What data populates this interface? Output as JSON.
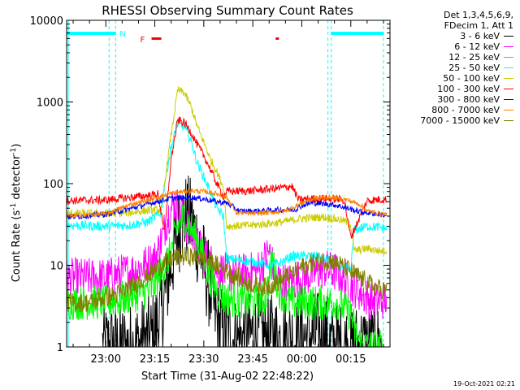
{
  "chart_data": {
    "type": "line",
    "title": "RHESSI Observing Summary Count Rates",
    "xlabel": "Start Time (31-Aug-02 22:48:22)",
    "ylabel_main": "Count Rate (s",
    "ylabel_sup1": "-1",
    "ylabel_mid": " detector",
    "ylabel_sup2": "-1",
    "ylabel_end": ")",
    "y_scale": "log",
    "ylim": [
      1,
      10000
    ],
    "xlim_minutes": [
      -12,
      87
    ],
    "x_ticks": [
      {
        "minute": 0,
        "label": "23:00"
      },
      {
        "minute": 15,
        "label": "23:15"
      },
      {
        "minute": 30,
        "label": "23:30"
      },
      {
        "minute": 45,
        "label": "23:45"
      },
      {
        "minute": 60,
        "label": "00:00"
      },
      {
        "minute": 75,
        "label": "00:15"
      }
    ],
    "y_ticks": [
      {
        "value": 1,
        "label": "1"
      },
      {
        "value": 10,
        "label": "10"
      },
      {
        "value": 100,
        "label": "100"
      },
      {
        "value": 1000,
        "label": "1000"
      },
      {
        "value": 10000,
        "label": "10000"
      }
    ],
    "legend_header": [
      "Det 1,3,4,5,6,9,",
      "FDecim 1, Att 1"
    ],
    "flag_labels": {
      "night": "N",
      "flare": "F"
    },
    "night_color": "#00ffff",
    "flare_color": "#ff0000",
    "night_bars": [
      [
        -12,
        3
      ],
      [
        69,
        85
      ]
    ],
    "flare_bars": [
      [
        14,
        17
      ],
      [
        52,
        53
      ]
    ],
    "data_gaps": [
      [
        -12,
        -11.5
      ],
      [
        1,
        3
      ],
      [
        68,
        69
      ],
      [
        85,
        87
      ]
    ],
    "series": [
      {
        "name": "3 - 6 keV",
        "color": "#000000",
        "points": [
          [
            -1,
            1
          ],
          [
            3,
            1
          ],
          [
            8,
            1
          ],
          [
            14,
            1.3
          ],
          [
            17,
            2.5
          ],
          [
            20,
            10
          ],
          [
            22,
            25
          ],
          [
            24,
            40
          ],
          [
            26,
            35
          ],
          [
            28,
            20
          ],
          [
            30,
            10
          ],
          [
            32,
            5
          ],
          [
            34,
            2
          ],
          [
            36,
            1.5
          ],
          [
            40,
            1.2
          ],
          [
            45,
            1.4
          ],
          [
            50,
            1.3
          ],
          [
            55,
            1.2
          ],
          [
            60,
            1.3
          ],
          [
            65,
            1.4
          ],
          [
            68,
            1.3
          ],
          [
            69,
            1
          ],
          [
            80,
            1
          ],
          [
            85,
            1
          ]
        ]
      },
      {
        "name": "6 - 12 keV",
        "color": "#ff00ff",
        "points": [
          [
            -12,
            7
          ],
          [
            0,
            7
          ],
          [
            8,
            8.5
          ],
          [
            12,
            10
          ],
          [
            15,
            12
          ],
          [
            17,
            20
          ],
          [
            19,
            40
          ],
          [
            21,
            60
          ],
          [
            23,
            45
          ],
          [
            25,
            30
          ],
          [
            28,
            18
          ],
          [
            31,
            12
          ],
          [
            34,
            9
          ],
          [
            37,
            8
          ],
          [
            43,
            8
          ],
          [
            47,
            9
          ],
          [
            50,
            15
          ],
          [
            52,
            7
          ],
          [
            56,
            6
          ],
          [
            60,
            7
          ],
          [
            64,
            8
          ],
          [
            67,
            9
          ],
          [
            71,
            8
          ],
          [
            74,
            6
          ],
          [
            77,
            5
          ],
          [
            80,
            4
          ],
          [
            83,
            3.5
          ],
          [
            86,
            4
          ]
        ]
      },
      {
        "name": "12 - 25 keV",
        "color": "#00ff00",
        "points": [
          [
            -12,
            3.5
          ],
          [
            0,
            3.5
          ],
          [
            6,
            4
          ],
          [
            10,
            4.5
          ],
          [
            14,
            5
          ],
          [
            17,
            8
          ],
          [
            20,
            15
          ],
          [
            22,
            30
          ],
          [
            24,
            40
          ],
          [
            26,
            30
          ],
          [
            28,
            20
          ],
          [
            30,
            12
          ],
          [
            32,
            7
          ],
          [
            34,
            5
          ],
          [
            36,
            4
          ],
          [
            45,
            3.5
          ],
          [
            49,
            4
          ],
          [
            51,
            12
          ],
          [
            53,
            5
          ],
          [
            56,
            3.5
          ],
          [
            62,
            3.5
          ],
          [
            67,
            3.5
          ],
          [
            71,
            3.5
          ],
          [
            75,
            2.5
          ],
          [
            77,
            1.2
          ],
          [
            80,
            1
          ],
          [
            85,
            1
          ]
        ]
      },
      {
        "name": "25 - 50 keV",
        "color": "#00ffff",
        "points": [
          [
            -12,
            31
          ],
          [
            0,
            30
          ],
          [
            7,
            31
          ],
          [
            13,
            34
          ],
          [
            17,
            45
          ],
          [
            18,
            100
          ],
          [
            20,
            280
          ],
          [
            22,
            540
          ],
          [
            24,
            500
          ],
          [
            26,
            340
          ],
          [
            28,
            180
          ],
          [
            30,
            120
          ],
          [
            32,
            80
          ],
          [
            34,
            50
          ],
          [
            36,
            40
          ],
          [
            37,
            12
          ],
          [
            45,
            11
          ],
          [
            51,
            10
          ],
          [
            54,
            11
          ],
          [
            57,
            13
          ],
          [
            60,
            13
          ],
          [
            64,
            13
          ],
          [
            67,
            12
          ],
          [
            69,
            11
          ],
          [
            71,
            10
          ],
          [
            73,
            9
          ],
          [
            75,
            9
          ],
          [
            76,
            27
          ],
          [
            80,
            30
          ],
          [
            84,
            29
          ],
          [
            86,
            28
          ]
        ]
      },
      {
        "name": "50 - 100 keV",
        "color": "#cccc00",
        "points": [
          [
            -12,
            43
          ],
          [
            0,
            43
          ],
          [
            7,
            44
          ],
          [
            13,
            47
          ],
          [
            17,
            48
          ],
          [
            18,
            100
          ],
          [
            20,
            400
          ],
          [
            22,
            1400
          ],
          [
            24,
            1300
          ],
          [
            26,
            900
          ],
          [
            28,
            500
          ],
          [
            30,
            320
          ],
          [
            32,
            200
          ],
          [
            34,
            140
          ],
          [
            36,
            90
          ],
          [
            37,
            30
          ],
          [
            45,
            31
          ],
          [
            52,
            33
          ],
          [
            56,
            35
          ],
          [
            59,
            37
          ],
          [
            62,
            38
          ],
          [
            66,
            39
          ],
          [
            70,
            37
          ],
          [
            73,
            35
          ],
          [
            75,
            31
          ],
          [
            76,
            15
          ],
          [
            80,
            16
          ],
          [
            84,
            15
          ],
          [
            86,
            15
          ]
        ]
      },
      {
        "name": "100 - 300 keV",
        "color": "#ff0000",
        "points": [
          [
            -12,
            62
          ],
          [
            0,
            63
          ],
          [
            8,
            68
          ],
          [
            14,
            72
          ],
          [
            16,
            75
          ],
          [
            18,
            25
          ],
          [
            20,
            200
          ],
          [
            22,
            600
          ],
          [
            24,
            560
          ],
          [
            26,
            430
          ],
          [
            28,
            300
          ],
          [
            30,
            220
          ],
          [
            32,
            150
          ],
          [
            34,
            100
          ],
          [
            36,
            70
          ],
          [
            37,
            80
          ],
          [
            45,
            82
          ],
          [
            53,
            88
          ],
          [
            57,
            93
          ],
          [
            59,
            63
          ],
          [
            62,
            65
          ],
          [
            66,
            66
          ],
          [
            70,
            65
          ],
          [
            73,
            63
          ],
          [
            75,
            22
          ],
          [
            80,
            62
          ],
          [
            84,
            64
          ],
          [
            86,
            64
          ]
        ]
      },
      {
        "name": "300 - 800 keV",
        "color": "#0000ff",
        "points": [
          [
            -12,
            39
          ],
          [
            0,
            42
          ],
          [
            8,
            50
          ],
          [
            14,
            58
          ],
          [
            20,
            66
          ],
          [
            26,
            68
          ],
          [
            30,
            65
          ],
          [
            34,
            60
          ],
          [
            37,
            58
          ],
          [
            41,
            46
          ],
          [
            45,
            46
          ],
          [
            50,
            47
          ],
          [
            54,
            48
          ],
          [
            58,
            48
          ],
          [
            60,
            54
          ],
          [
            63,
            58
          ],
          [
            66,
            57
          ],
          [
            70,
            55
          ],
          [
            74,
            50
          ],
          [
            77,
            46
          ],
          [
            80,
            44
          ],
          [
            84,
            42
          ],
          [
            86,
            41
          ]
        ]
      },
      {
        "name": "800 - 7000 keV",
        "color": "#ff8000",
        "points": [
          [
            -12,
            40
          ],
          [
            0,
            43
          ],
          [
            8,
            56
          ],
          [
            14,
            64
          ],
          [
            20,
            76
          ],
          [
            26,
            82
          ],
          [
            30,
            80
          ],
          [
            34,
            75
          ],
          [
            37,
            68
          ],
          [
            40,
            44
          ],
          [
            45,
            43
          ],
          [
            50,
            44
          ],
          [
            55,
            46
          ],
          [
            60,
            58
          ],
          [
            64,
            66
          ],
          [
            67,
            68
          ],
          [
            70,
            67
          ],
          [
            74,
            63
          ],
          [
            78,
            55
          ],
          [
            80,
            46
          ],
          [
            84,
            43
          ],
          [
            86,
            42
          ]
        ]
      },
      {
        "name": "7000 - 15000 keV",
        "color": "#808000",
        "points": [
          [
            -12,
            3.5
          ],
          [
            -5,
            3.5
          ],
          [
            0,
            4
          ],
          [
            4,
            4.5
          ],
          [
            8,
            5.5
          ],
          [
            12,
            7
          ],
          [
            16,
            9.5
          ],
          [
            20,
            12
          ],
          [
            25,
            13
          ],
          [
            30,
            12
          ],
          [
            34,
            10
          ],
          [
            38,
            8
          ],
          [
            42,
            6.5
          ],
          [
            46,
            5.6
          ],
          [
            49,
            5.4
          ],
          [
            52,
            6
          ],
          [
            56,
            7.5
          ],
          [
            60,
            9.5
          ],
          [
            64,
            11
          ],
          [
            67,
            11.5
          ],
          [
            70,
            11
          ],
          [
            74,
            9
          ],
          [
            78,
            7
          ],
          [
            82,
            5.5
          ],
          [
            86,
            4.8
          ]
        ]
      }
    ]
  },
  "footer": {
    "date": "19-Oct-2021 02:21"
  }
}
